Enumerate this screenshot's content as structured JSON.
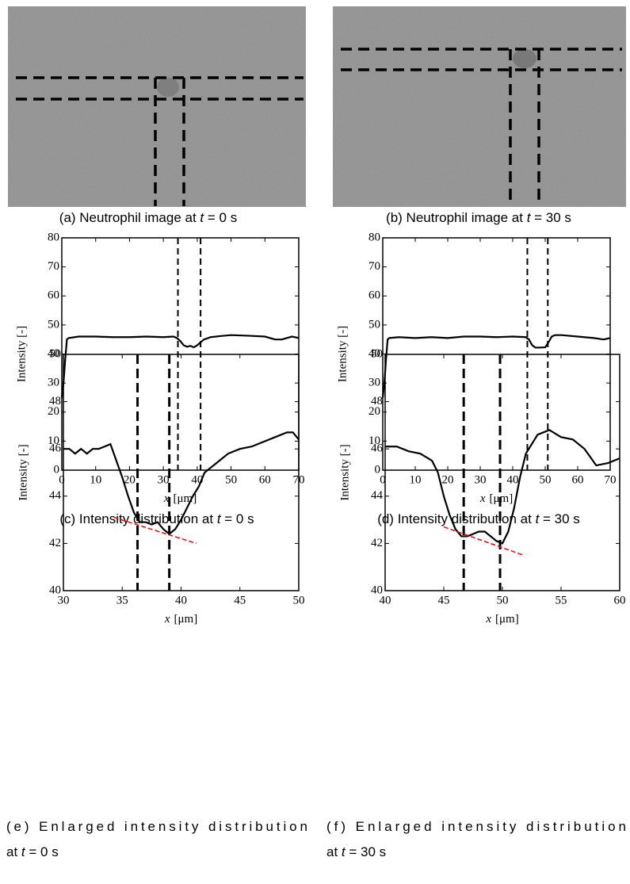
{
  "images": [
    {
      "caption": {
        "before": "(a) Neutrophil image at ",
        "var": "t",
        "after": " = 0 s"
      }
    },
    {
      "caption": {
        "before": "(b) Neutrophil image at ",
        "var": "t",
        "after": " = 30 s"
      }
    }
  ],
  "chart_data": [
    {
      "type": "line",
      "ylabel": "Intensity [-]",
      "xlabel": {
        "var": "x",
        "unit": "[μm]"
      },
      "caption": {
        "before": "(c) Intensity distribution at ",
        "var": "t",
        "after": " = 0 s"
      },
      "xlim": [
        0,
        70
      ],
      "ylim": [
        0,
        80
      ],
      "xticks": [
        0,
        10,
        20,
        30,
        40,
        50,
        60,
        70
      ],
      "yticks": [
        0,
        10,
        20,
        30,
        40,
        50,
        60,
        70,
        80
      ],
      "x": [
        0,
        0.5,
        1,
        1.5,
        2,
        5,
        10,
        15,
        20,
        25,
        30,
        33,
        34,
        35,
        36,
        37,
        38,
        39,
        40,
        41,
        42,
        44,
        47,
        50,
        55,
        60,
        63,
        65,
        68,
        70
      ],
      "series": [
        {
          "color": "#000000",
          "values": [
            25,
            30,
            38,
            45,
            45.5,
            46,
            46,
            45.8,
            45.8,
            46,
            45.8,
            46,
            45.5,
            44.5,
            43,
            42.5,
            42.8,
            42.3,
            43,
            44,
            45,
            45.8,
            46.2,
            46.5,
            46.3,
            46,
            45,
            45,
            46,
            45.5
          ]
        }
      ],
      "vlines": [
        34.3,
        41
      ]
    },
    {
      "type": "line",
      "ylabel": "Intensity [-]",
      "xlabel": {
        "var": "x",
        "unit": "[μm]"
      },
      "caption": {
        "before": "(d) Intensity distribution at ",
        "var": "t",
        "after": " = 30 s"
      },
      "xlim": [
        0,
        70
      ],
      "ylim": [
        0,
        80
      ],
      "xticks": [
        0,
        10,
        20,
        30,
        40,
        50,
        60,
        70
      ],
      "yticks": [
        0,
        10,
        20,
        30,
        40,
        50,
        60,
        70,
        80
      ],
      "x": [
        0,
        0.5,
        1,
        1.5,
        2,
        5,
        10,
        15,
        20,
        25,
        30,
        35,
        40,
        44,
        45,
        46,
        47,
        48,
        50,
        51,
        52,
        53,
        55,
        60,
        65,
        68,
        70
      ],
      "series": [
        {
          "color": "#000000",
          "values": [
            25,
            30,
            38,
            45,
            45.5,
            45.8,
            45.5,
            45.8,
            45.5,
            46,
            46,
            45.8,
            46,
            45.8,
            45,
            43,
            42.2,
            42.2,
            42.3,
            44,
            46,
            46.5,
            46.5,
            46,
            45.5,
            45,
            45.5
          ]
        }
      ],
      "vlines": [
        44.5,
        50.8
      ]
    },
    {
      "type": "line",
      "ylabel": "Intensity [-]",
      "xlabel": {
        "var": "x",
        "unit": "[μm]"
      },
      "caption": {
        "line1": "(e) Enlarged intensity distribution",
        "before": "at ",
        "var": "t",
        "after": " = 0 s"
      },
      "xlim": [
        30,
        50
      ],
      "ylim": [
        40,
        50
      ],
      "xticks": [
        30,
        35,
        40,
        45,
        50
      ],
      "yticks": [
        40,
        42,
        44,
        46,
        48,
        50
      ],
      "x": [
        30,
        30.5,
        31,
        31.5,
        32,
        32.5,
        33,
        33.5,
        34,
        34.5,
        35,
        35.5,
        36,
        36.5,
        37,
        37.5,
        38,
        38.5,
        39,
        39.5,
        40,
        40.5,
        41,
        41.5,
        42,
        43,
        44,
        45,
        46,
        47,
        48,
        49,
        49.5,
        50
      ],
      "series": [
        {
          "color": "#000000",
          "values": [
            46,
            46,
            45.8,
            46,
            45.8,
            46,
            46,
            46.1,
            46.2,
            45.5,
            44.8,
            44,
            43.3,
            42.9,
            42.9,
            42.8,
            42.9,
            42.6,
            42.4,
            42.6,
            43,
            43.5,
            44,
            44.4,
            45,
            45.4,
            45.8,
            46,
            46.1,
            46.3,
            46.5,
            46.7,
            46.7,
            46.4
          ]
        }
      ],
      "vlines": [
        36.3,
        39
      ],
      "trend_line": {
        "color": "#ff0000",
        "x": [
          34.3,
          41.3
        ],
        "y": [
          43.1,
          42.0
        ]
      }
    },
    {
      "type": "line",
      "ylabel": "Intensity [-]",
      "xlabel": {
        "var": "x",
        "unit": "[μm]"
      },
      "caption": {
        "line1": "(f) Enlarged intensity distribution",
        "before": "at ",
        "var": "t",
        "after": " = 30 s"
      },
      "xlim": [
        40,
        60
      ],
      "ylim": [
        40,
        50
      ],
      "xticks": [
        40,
        45,
        50,
        55,
        60
      ],
      "yticks": [
        40,
        42,
        44,
        46,
        48,
        50
      ],
      "x": [
        40,
        41,
        42,
        43,
        44,
        44.5,
        45,
        45.5,
        46,
        46.5,
        47,
        47.5,
        48,
        48.5,
        49,
        49.5,
        50,
        50.5,
        51,
        51.5,
        52,
        53,
        54,
        55,
        56,
        57,
        58,
        59,
        60
      ],
      "series": [
        {
          "color": "#000000",
          "values": [
            46.1,
            46.1,
            45.9,
            45.8,
            45.5,
            45,
            44,
            43.2,
            42.6,
            42.3,
            42.3,
            42.4,
            42.5,
            42.5,
            42.3,
            42.1,
            42,
            42.5,
            43.5,
            44.8,
            45.8,
            46.6,
            46.8,
            46.5,
            46.4,
            46,
            45.3,
            45.4,
            45.6
          ]
        }
      ],
      "vlines": [
        46.7,
        49.8
      ],
      "trend_line": {
        "color": "#ff0000",
        "x": [
          45,
          51.8
        ],
        "y": [
          42.7,
          41.5
        ]
      }
    }
  ]
}
